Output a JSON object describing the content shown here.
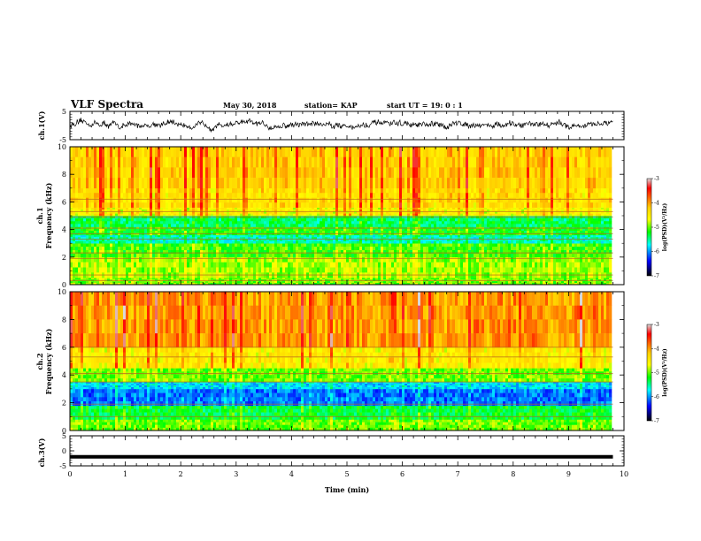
{
  "header": {
    "title": "VLF Spectra",
    "date": "May 30, 2018",
    "station": "station= KAP",
    "start": "start  UT =   19: 0  : 1"
  },
  "colorbar": {
    "label": "log(PSD)(V²/Hz)",
    "ticks": [
      "-3",
      "-4",
      "-5",
      "-6",
      "-7"
    ],
    "colors": [
      "#d9d9d9",
      "#ff0000",
      "#ffd000",
      "#ffff00",
      "#00ff00",
      "#00ffff",
      "#0000ff",
      "#000000"
    ]
  },
  "chart_data": [
    {
      "type": "line",
      "panel": "ch1-waveform",
      "ylabel": "ch.1(V)",
      "ylim": [
        -5,
        5
      ],
      "yticks": [
        "5",
        "-5"
      ],
      "xlim": [
        0,
        10
      ],
      "x_extent_min": 9.8,
      "description_values": {
        "baseline": 0.3,
        "amplitude": 1.0
      }
    },
    {
      "type": "heatmap",
      "panel": "ch1-spectrogram",
      "ylabel": "ch.1",
      "ylabel2": "Frequency (kHz)",
      "ylim": [
        0,
        10
      ],
      "yticks": [
        "0",
        "2",
        "4",
        "6",
        "8",
        "10"
      ],
      "xlim": [
        0,
        10
      ],
      "zlim": [
        -7,
        -3
      ],
      "bands": [
        {
          "f": [
            0.0,
            0.5
          ],
          "level": -5.0
        },
        {
          "f": [
            0.5,
            2.0
          ],
          "level": -4.9
        },
        {
          "f": [
            2.0,
            3.0
          ],
          "level": -5.1
        },
        {
          "f": [
            3.0,
            3.6
          ],
          "level": -5.6
        },
        {
          "f": [
            3.6,
            4.2
          ],
          "level": -5.2
        },
        {
          "f": [
            4.2,
            5.0
          ],
          "level": -5.4
        },
        {
          "f": [
            5.0,
            5.6
          ],
          "level": -4.6
        },
        {
          "f": [
            5.6,
            7.0
          ],
          "level": -4.4
        },
        {
          "f": [
            7.0,
            10.0
          ],
          "level": -4.3
        }
      ],
      "lines_kHz": [
        0.3,
        0.7,
        1.9,
        2.3,
        3.3,
        3.7,
        4.1,
        4.9,
        5.3,
        6.2
      ]
    },
    {
      "type": "heatmap",
      "panel": "ch2-spectrogram",
      "ylabel": "ch.2",
      "ylabel2": "Frequency (kHz)",
      "ylim": [
        0,
        10
      ],
      "yticks": [
        "0",
        "2",
        "4",
        "6",
        "8",
        "10"
      ],
      "xlim": [
        0,
        10
      ],
      "zlim": [
        -7,
        -3
      ],
      "bands": [
        {
          "f": [
            0.0,
            0.8
          ],
          "level": -5.0
        },
        {
          "f": [
            0.8,
            1.8
          ],
          "level": -5.3
        },
        {
          "f": [
            1.8,
            3.0
          ],
          "level": -6.1
        },
        {
          "f": [
            3.0,
            3.5
          ],
          "level": -5.8
        },
        {
          "f": [
            3.5,
            4.5
          ],
          "level": -5.0
        },
        {
          "f": [
            4.5,
            6.0
          ],
          "level": -4.5
        },
        {
          "f": [
            6.0,
            10.0
          ],
          "level": -4.0
        }
      ],
      "lines_kHz": [
        1.0,
        1.9,
        3.5,
        4.1,
        5.3,
        6.0
      ]
    },
    {
      "type": "line",
      "panel": "ch3-waveform",
      "ylabel": "ch.3(V)",
      "xlabel": "Time (min)",
      "ylim": [
        -5,
        5
      ],
      "yticks": [
        "5",
        "0",
        "-5"
      ],
      "xlim": [
        0,
        10
      ],
      "xticks": [
        "0",
        "1",
        "2",
        "3",
        "4",
        "5",
        "6",
        "7",
        "8",
        "9",
        "10"
      ],
      "x_extent_min": 9.8,
      "constant_value": -2
    }
  ]
}
